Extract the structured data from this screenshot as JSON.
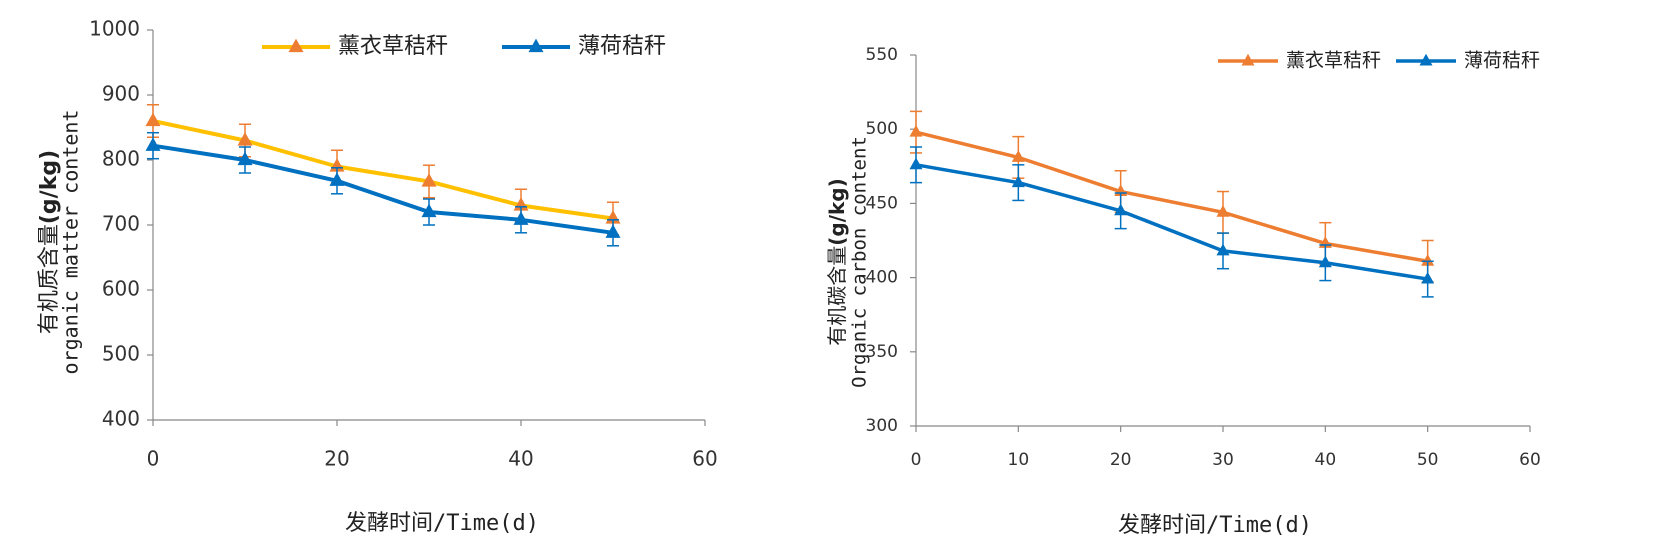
{
  "chart_data": [
    {
      "type": "line",
      "x": [
        0,
        10,
        20,
        30,
        40,
        50
      ],
      "xlim": [
        0,
        60
      ],
      "xticks": [
        "0",
        "20",
        "40",
        "60"
      ],
      "ylim": [
        400,
        1000
      ],
      "yticks": [
        "400",
        "500",
        "600",
        "700",
        "800",
        "900",
        "1000"
      ],
      "xlabel": "发酵时间/Time(d)",
      "ylabel_cn": "有机质含量",
      "ylabel_en": "organic matter content",
      "ylabel_unit": "(g/kg)",
      "legend_position": "top",
      "grid": false,
      "series": [
        {
          "name": "薰衣草秸秆",
          "line_color": "#FFC000",
          "marker_color": "#ED7D31",
          "values": [
            860,
            830,
            790,
            767,
            730,
            710
          ],
          "errors": [
            25,
            25,
            25,
            25,
            25,
            25
          ]
        },
        {
          "name": "薄荷秸秆",
          "line_color": "#0070C0",
          "marker_color": "#0070C0",
          "values": [
            822,
            800,
            768,
            720,
            708,
            688
          ],
          "errors": [
            20,
            20,
            20,
            20,
            20,
            20
          ]
        }
      ]
    },
    {
      "type": "line",
      "x": [
        0,
        10,
        20,
        30,
        40,
        50
      ],
      "xlim": [
        0,
        60
      ],
      "xticks": [
        "0",
        "10",
        "20",
        "30",
        "40",
        "50",
        "60"
      ],
      "ylim": [
        300,
        550
      ],
      "yticks": [
        "300",
        "350",
        "400",
        "450",
        "500",
        "550"
      ],
      "xlabel": "发酵时间/Time(d)",
      "ylabel_cn": "有机碳含量",
      "ylabel_en": "Organic carbon content",
      "ylabel_unit": "(g/kg)",
      "legend_position": "top-right",
      "grid": false,
      "series": [
        {
          "name": "薰衣草秸秆",
          "line_color": "#ED7D31",
          "marker_color": "#ED7D31",
          "values": [
            498,
            481,
            458,
            444,
            423,
            411
          ],
          "errors": [
            14,
            14,
            14,
            14,
            14,
            14
          ]
        },
        {
          "name": "薄荷秸秆",
          "line_color": "#0070C0",
          "marker_color": "#0070C0",
          "values": [
            476,
            464,
            445,
            418,
            410,
            399
          ],
          "errors": [
            12,
            12,
            12,
            12,
            12,
            12
          ]
        }
      ]
    }
  ]
}
